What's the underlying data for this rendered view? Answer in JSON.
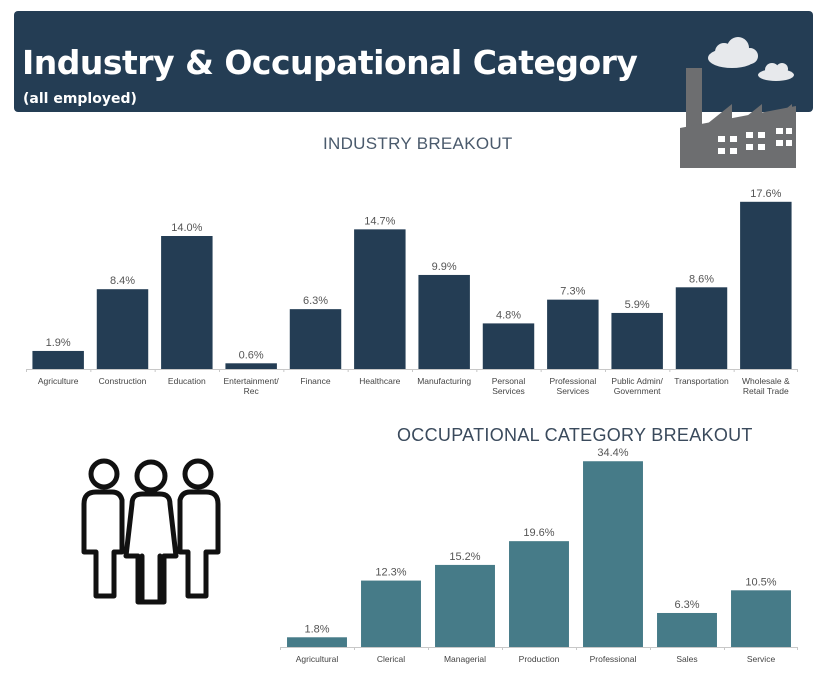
{
  "header": {
    "title": "Industry & Occupational Category",
    "subtitle": "(all employed)"
  },
  "icons": {
    "factory": "factory-icon",
    "clouds": "cloud-icon",
    "people": "people-group-icon"
  },
  "colors": {
    "header_bg": "#243d54",
    "industry_bar": "#243d54",
    "occupation_bar": "#467b88",
    "icon_gray": "#6d6e70"
  },
  "chart_data": [
    {
      "type": "bar",
      "title": "INDUSTRY BREAKOUT",
      "categories": [
        [
          "Agriculture"
        ],
        [
          "Construction"
        ],
        [
          "Education"
        ],
        [
          "Entertainment/",
          "Rec"
        ],
        [
          "Finance"
        ],
        [
          "Healthcare"
        ],
        [
          "Manufacturing"
        ],
        [
          "Personal",
          "Services"
        ],
        [
          "Professional",
          "Services"
        ],
        [
          "Public Admin/",
          "Government"
        ],
        [
          "Transportation"
        ],
        [
          "Wholesale &",
          "Retail Trade"
        ]
      ],
      "values": [
        1.9,
        8.4,
        14.0,
        0.6,
        6.3,
        14.7,
        9.9,
        4.8,
        7.3,
        5.9,
        8.6,
        17.6
      ],
      "labels": [
        "1.9%",
        "8.4%",
        "14.0%",
        "0.6%",
        "6.3%",
        "14.7%",
        "9.9%",
        "4.8%",
        "7.3%",
        "5.9%",
        "8.6%",
        "17.6%"
      ],
      "ylim": [
        0,
        20
      ],
      "grid": false,
      "color": "#243d54"
    },
    {
      "type": "bar",
      "title": "OCCUPATIONAL CATEGORY BREAKOUT",
      "categories": [
        [
          "Agricultural"
        ],
        [
          "Clerical"
        ],
        [
          "Managerial"
        ],
        [
          "Production"
        ],
        [
          "Professional"
        ],
        [
          "Sales"
        ],
        [
          "Service"
        ]
      ],
      "values": [
        1.8,
        12.3,
        15.2,
        19.6,
        34.4,
        6.3,
        10.5
      ],
      "labels": [
        "1.8%",
        "12.3%",
        "15.2%",
        "19.6%",
        "34.4%",
        "6.3%",
        "10.5%"
      ],
      "ylim": [
        0,
        40
      ],
      "grid": false,
      "color": "#467b88"
    }
  ]
}
